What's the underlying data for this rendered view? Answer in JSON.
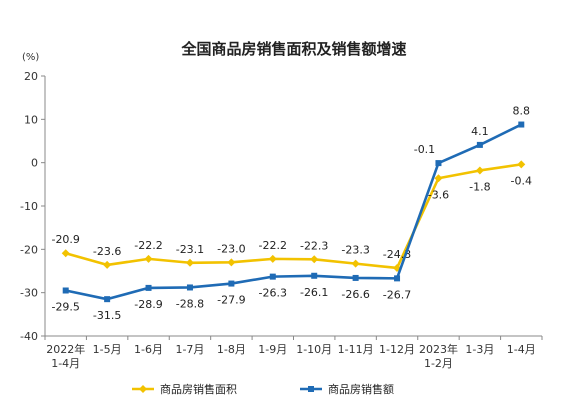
{
  "chart_data": {
    "type": "line",
    "title": "全国商品房销售面积及销售额增速",
    "yunit": "(%)",
    "ylim": [
      -40,
      20
    ],
    "yticks": [
      "20",
      "10",
      "0",
      "-10",
      "-20",
      "-30",
      "-40"
    ],
    "categories": [
      [
        "2022年",
        "1-4月"
      ],
      [
        "1-5月"
      ],
      [
        "1-6月"
      ],
      [
        "1-7月"
      ],
      [
        "1-8月"
      ],
      [
        "1-9月"
      ],
      [
        "1-10月"
      ],
      [
        "1-11月"
      ],
      [
        "1-12月"
      ],
      [
        "2023年",
        "1-2月"
      ],
      [
        "1-3月"
      ],
      [
        "1-4月"
      ]
    ],
    "series": [
      {
        "name": "商品房销售面积",
        "color": "#f2c200",
        "marker": "diamond",
        "values": [
          -20.9,
          -23.6,
          -22.2,
          -23.1,
          -23.0,
          -22.2,
          -22.3,
          -23.3,
          -24.3,
          -3.6,
          -1.8,
          -0.4
        ],
        "labels": [
          "-20.9",
          "-23.6",
          "-22.2",
          "-23.1",
          "-23.0",
          "-22.2",
          "-22.3",
          "-23.3",
          "-24.3",
          "-3.6",
          "-1.8",
          "-0.4"
        ]
      },
      {
        "name": "商品房销售额",
        "color": "#1f6bb5",
        "marker": "square",
        "values": [
          -29.5,
          -31.5,
          -28.9,
          -28.8,
          -27.9,
          -26.3,
          -26.1,
          -26.6,
          -26.7,
          -0.1,
          4.1,
          8.8
        ],
        "labels": [
          "-29.5",
          "-31.5",
          "-28.9",
          "-28.8",
          "-27.9",
          "-26.3",
          "-26.1",
          "-26.6",
          "-26.7",
          "-0.1",
          "4.1",
          "8.8"
        ]
      }
    ],
    "legend_position": "bottom",
    "grid": false
  }
}
